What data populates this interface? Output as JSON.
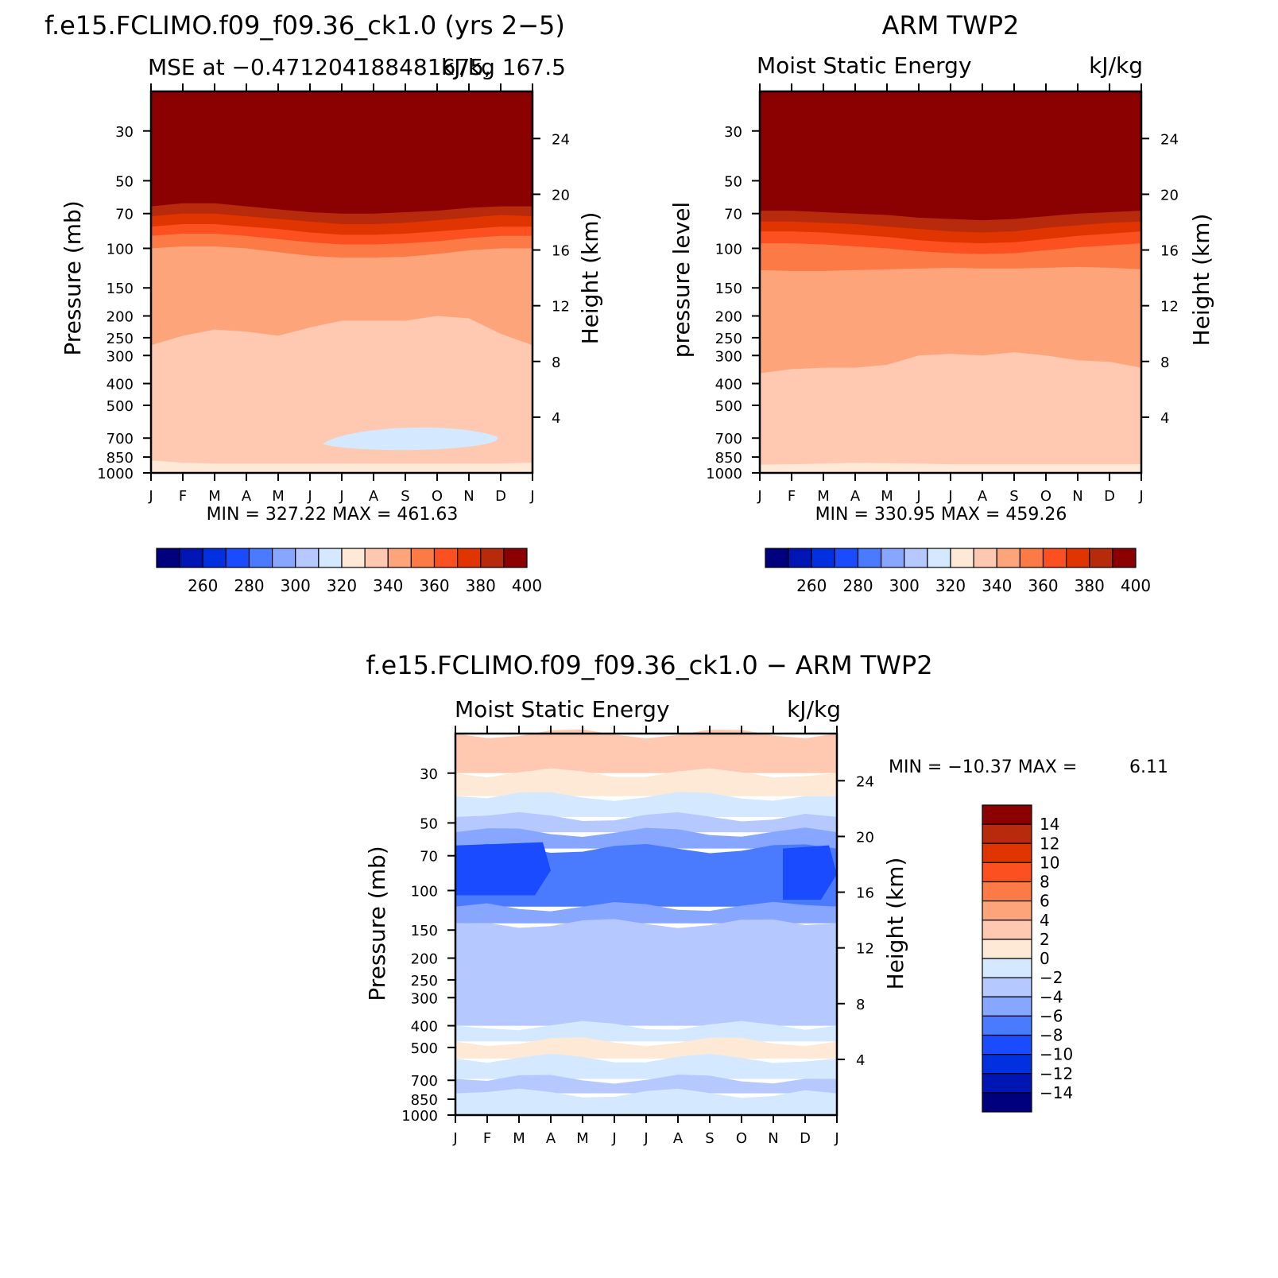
{
  "months": [
    "J",
    "F",
    "M",
    "A",
    "M",
    "J",
    "J",
    "A",
    "S",
    "O",
    "N",
    "D",
    "J"
  ],
  "pressure_ticks": [
    30,
    50,
    70,
    100,
    150,
    200,
    250,
    300,
    400,
    500,
    700,
    850,
    1000
  ],
  "height_ticks": [
    4,
    8,
    12,
    16,
    20,
    24
  ],
  "color_scale": {
    "levels": [
      250,
      260,
      270,
      280,
      290,
      300,
      310,
      320,
      330,
      340,
      350,
      360,
      370,
      380,
      390,
      400,
      410
    ],
    "tick_labels": [
      "260",
      "280",
      "300",
      "320",
      "340",
      "360",
      "380",
      "400"
    ],
    "colors": [
      "#00007f",
      "#0016b4",
      "#0030e0",
      "#1a4bff",
      "#4a7bff",
      "#86a6ff",
      "#b5c8ff",
      "#d4e8ff",
      "#fee9d6",
      "#fec9b0",
      "#fda47a",
      "#fc7a46",
      "#fc5020",
      "#e03500",
      "#b82a0c",
      "#8b0000"
    ]
  },
  "diff_scale": {
    "labels": [
      "14",
      "12",
      "10",
      "8",
      "6",
      "4",
      "2",
      "0",
      "−2",
      "−4",
      "−6",
      "−8",
      "−10",
      "−12",
      "−14"
    ],
    "colors": [
      "#8b0000",
      "#b82a0c",
      "#e03500",
      "#fc5020",
      "#fc7a46",
      "#fda47a",
      "#fec9b0",
      "#fee9d6",
      "#d4e8ff",
      "#b5c8ff",
      "#86a6ff",
      "#4a7bff",
      "#1a4bff",
      "#0030e0",
      "#0016b4",
      "#00007f"
    ]
  },
  "chart_data": [
    {
      "type": "heatmap",
      "title": "f.e15.FCLIMO.f09_f09.36_ck1.0 (yrs 2−5)",
      "subtitle_left": "MSE at −0.471204188481675,",
      "subtitle_right": "kJ/kg 167.5",
      "ylabel": "Pressure (mb)",
      "y2label": "Height (km)",
      "ylim": [
        20,
        1000
      ],
      "stats": "MIN = 327.22 MAX = 461.63",
      "contour_boundaries": {
        "410": [
          57,
          55,
          55,
          56,
          58,
          60,
          61,
          61,
          60,
          59,
          58,
          57,
          57
        ],
        "400": [
          65,
          63,
          63,
          65,
          67,
          69,
          70,
          70,
          69,
          68,
          66,
          65,
          65
        ],
        "390": [
          72,
          70,
          70,
          72,
          74,
          76,
          78,
          78,
          77,
          75,
          73,
          71,
          72
        ],
        "380": [
          80,
          78,
          78,
          80,
          82,
          85,
          87,
          87,
          86,
          84,
          82,
          80,
          80
        ],
        "370": [
          88,
          86,
          86,
          88,
          91,
          94,
          96,
          96,
          95,
          93,
          90,
          88,
          88
        ],
        "360": [
          100,
          98,
          98,
          100,
          104,
          108,
          110,
          110,
          109,
          106,
          102,
          100,
          100
        ],
        "350": [
          270,
          245,
          230,
          235,
          245,
          225,
          210,
          210,
          210,
          200,
          205,
          240,
          270
        ],
        "340": [
          880,
          900,
          910,
          910,
          910,
          910,
          910,
          910,
          910,
          910,
          910,
          910,
          900
        ]
      },
      "anomaly_minimum": {
        "months": [
          5.4,
          10.9
        ],
        "pressure_range": [
          625,
          800
        ]
      }
    },
    {
      "type": "heatmap",
      "title": "ARM TWP2",
      "subtitle_left": "Moist Static Energy",
      "subtitle_right": "kJ/kg",
      "ylabel": "pressure level",
      "y2label": "Height (km)",
      "ylim": [
        20,
        1000
      ],
      "stats": "MIN = 330.95 MAX = 459.26",
      "contour_boundaries": {
        "410": [
          60,
          60,
          61,
          62,
          63,
          64,
          65,
          65,
          64,
          63,
          62,
          61,
          60
        ],
        "400": [
          68,
          68,
          69,
          70,
          71,
          73,
          74,
          75,
          74,
          72,
          70,
          69,
          68
        ],
        "390": [
          76,
          76,
          77,
          78,
          80,
          82,
          84,
          85,
          84,
          81,
          79,
          77,
          76
        ],
        "380": [
          84,
          84,
          85,
          87,
          89,
          92,
          94,
          95,
          94,
          91,
          88,
          86,
          84
        ],
        "370": [
          95,
          95,
          96,
          98,
          100,
          103,
          105,
          106,
          105,
          102,
          99,
          97,
          95
        ],
        "360": [
          125,
          126,
          126,
          125,
          124,
          123,
          122,
          123,
          123,
          122,
          121,
          122,
          124
        ],
        "350": [
          360,
          345,
          340,
          340,
          330,
          300,
          295,
          300,
          290,
          300,
          315,
          320,
          340
        ],
        "340": [
          920,
          915,
          910,
          900,
          905,
          910,
          915,
          915,
          915,
          915,
          915,
          915,
          915
        ]
      }
    },
    {
      "type": "heatmap",
      "title": "f.e15.FCLIMO.f09_f09.36_ck1.0 − ARM TWP2",
      "subtitle_left": "Moist Static Energy",
      "subtitle_right": "kJ/kg",
      "ylabel": "Pressure (mb)",
      "y2label": "Height (km)",
      "ylim": [
        20,
        1000
      ],
      "stats_label": "MIN = −10.37 MAX =",
      "stats_value": "6.11",
      "bands": [
        {
          "value": 3,
          "from": 20,
          "to": 30
        },
        {
          "value": 1,
          "from": 30,
          "to": 38
        },
        {
          "value": -1,
          "from": 38,
          "to": 47
        },
        {
          "value": -3,
          "from": 47,
          "to": 55
        },
        {
          "value": -5,
          "from": 55,
          "to": 65
        },
        {
          "value": -7,
          "from": 65,
          "to": 118
        },
        {
          "value": -5,
          "from": 118,
          "to": 140
        },
        {
          "value": -3,
          "from": 140,
          "to": 400
        },
        {
          "value": -1,
          "from": 400,
          "to": 470
        },
        {
          "value": 1,
          "from": 470,
          "to": 560
        },
        {
          "value": -1,
          "from": 560,
          "to": 690
        },
        {
          "value": -3,
          "from": 690,
          "to": 800
        },
        {
          "value": -1,
          "from": 800,
          "to": 1000
        }
      ],
      "min_region": {
        "value": -9,
        "months": [
          0,
          3.0
        ],
        "pressure_range": [
          63,
          105
        ]
      },
      "min_region_2": {
        "value": -9,
        "months": [
          10.3,
          12
        ],
        "pressure_range": [
          65,
          110
        ]
      }
    }
  ]
}
